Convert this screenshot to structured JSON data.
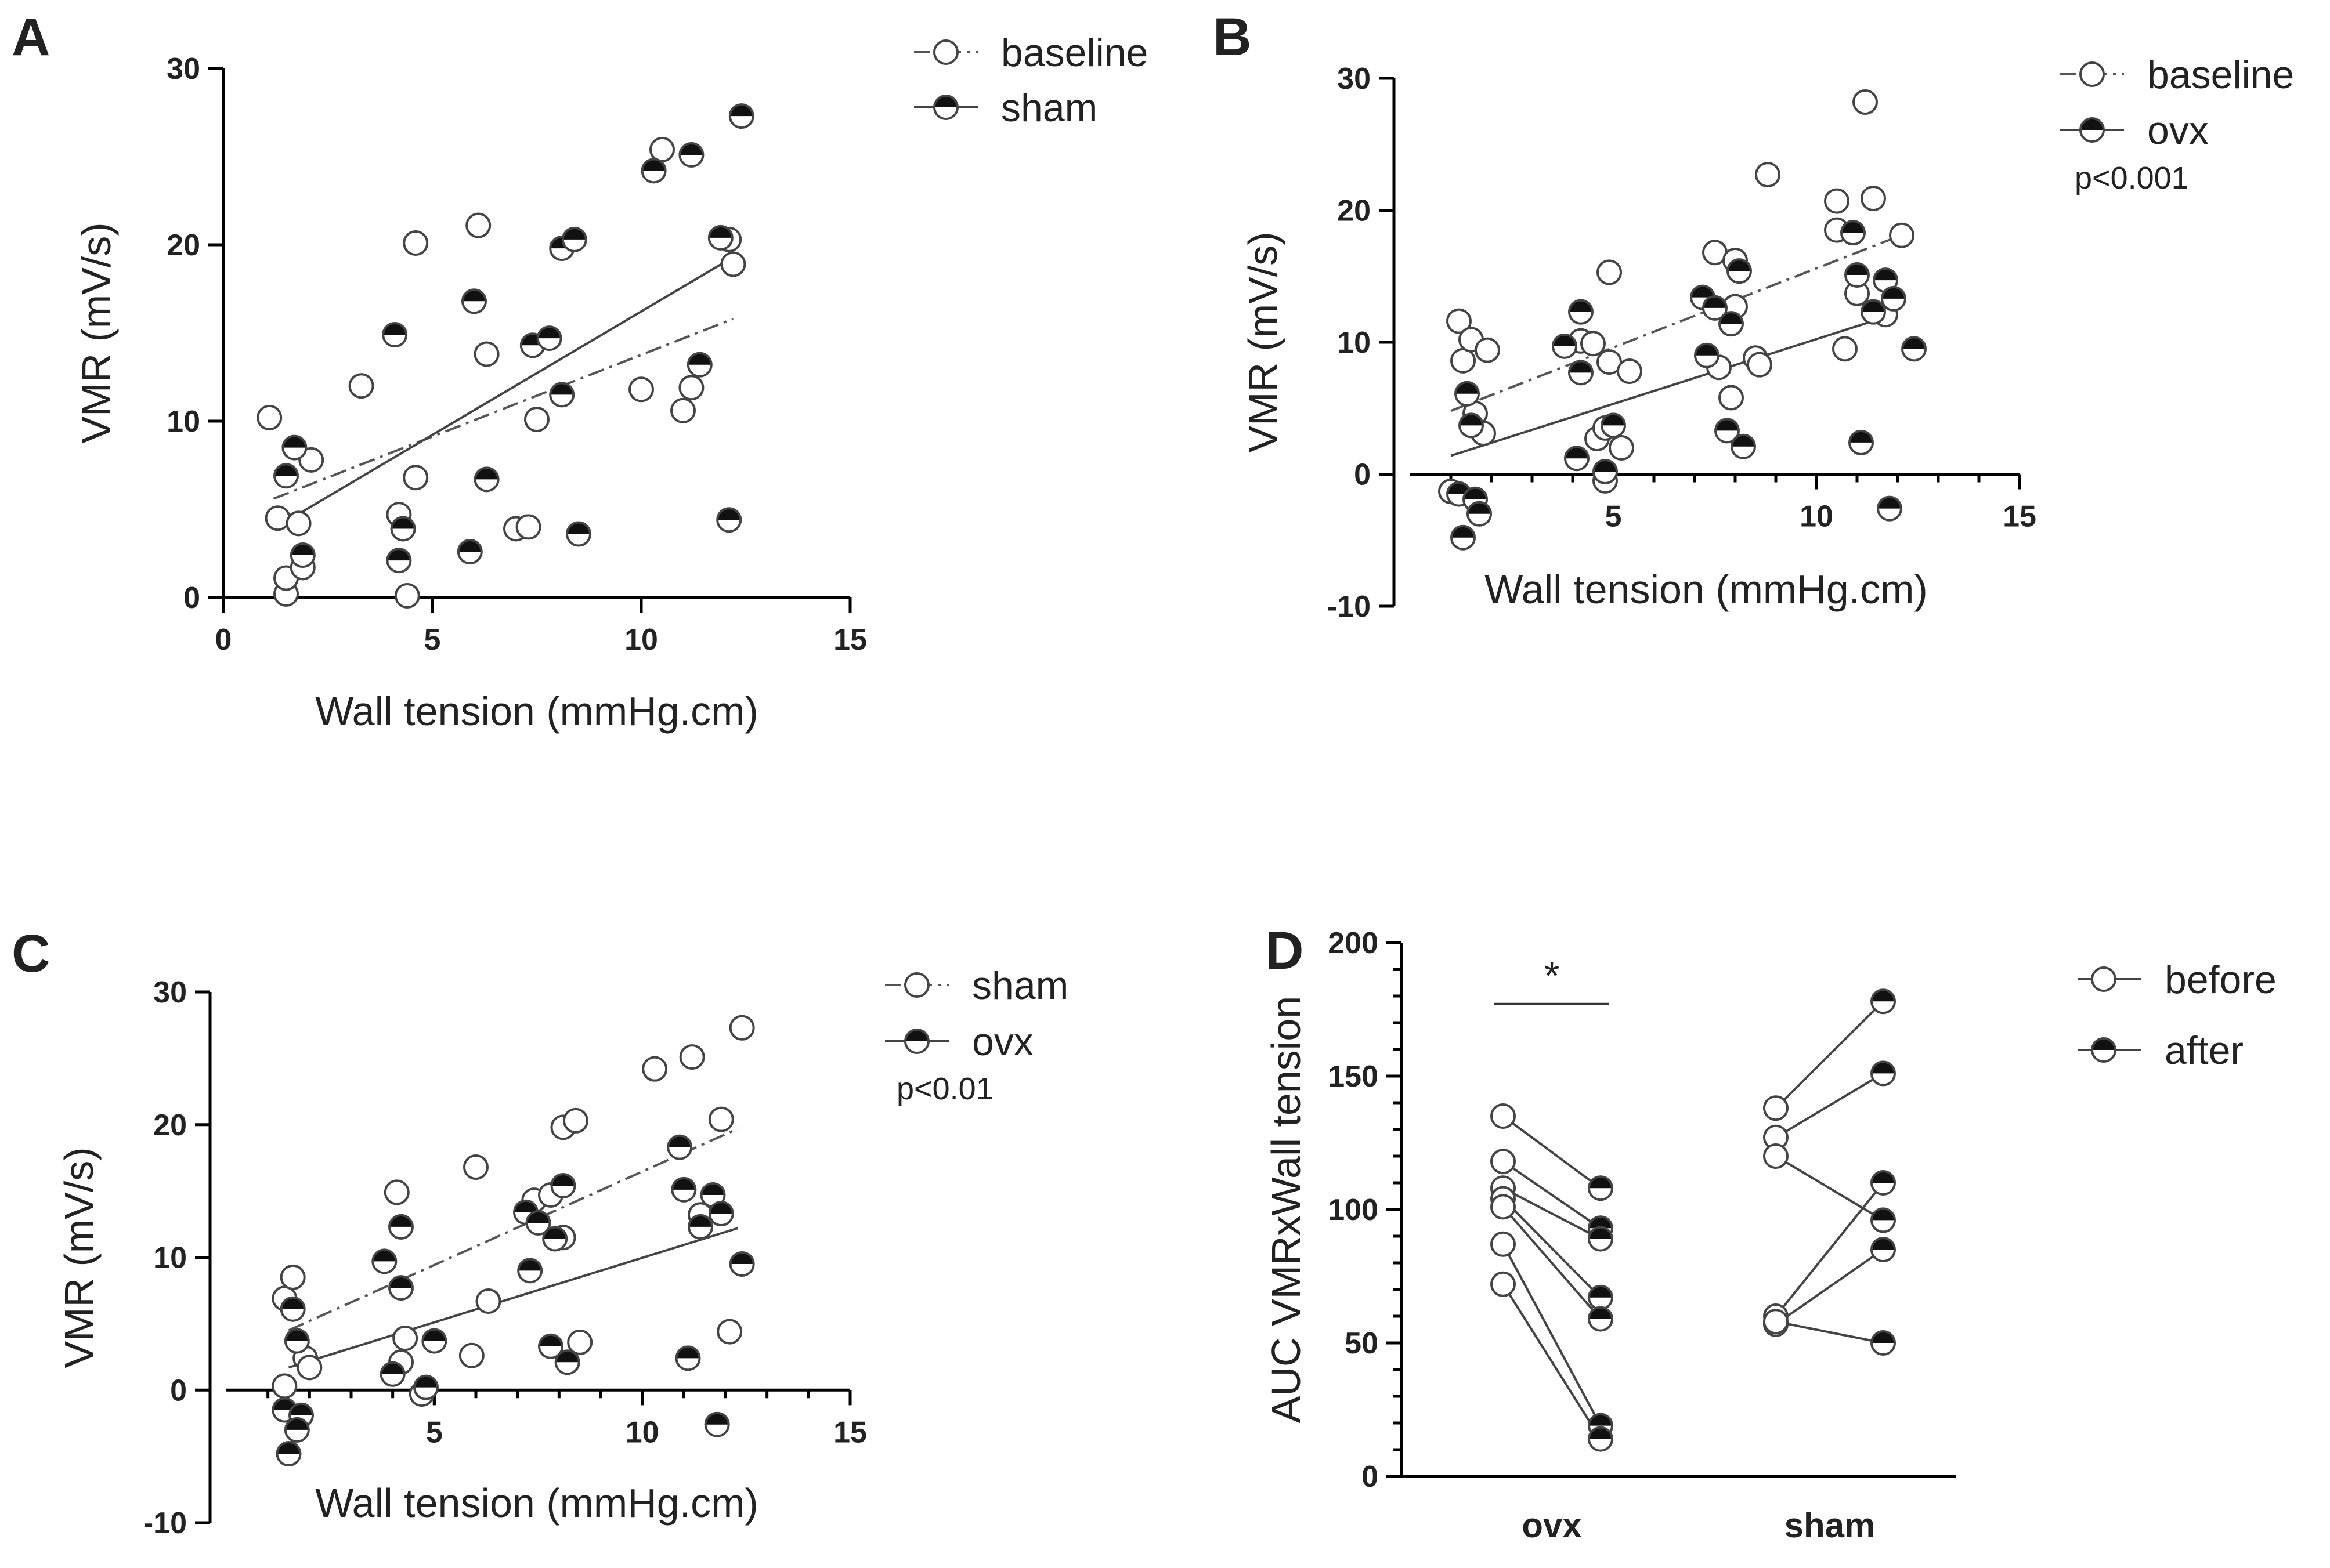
{
  "figure": {
    "panels": [
      {
        "id": "A",
        "letter": "A"
      },
      {
        "id": "B",
        "letter": "B"
      },
      {
        "id": "C",
        "letter": "C"
      },
      {
        "id": "D",
        "letter": "D"
      }
    ]
  },
  "chart_data": [
    {
      "id": "A",
      "type": "scatter",
      "xlabel": "Wall tension (mmHg.cm)",
      "ylabel": "VMR (mV/s)",
      "xlim": [
        0,
        15
      ],
      "ylim": [
        0,
        30
      ],
      "xticks": [
        0,
        5,
        10,
        15
      ],
      "yticks": [
        0,
        10,
        20,
        30
      ],
      "legend_position": "top-right",
      "series": [
        {
          "name": "baseline",
          "marker": "open",
          "fit_line": "dashed",
          "fit": [
            [
              1.2,
              5.6
            ],
            [
              12.2,
              15.8
            ]
          ],
          "points": [
            [
              1.1,
              10.2
            ],
            [
              1.3,
              4.5
            ],
            [
              1.5,
              0.2
            ],
            [
              1.5,
              1.1
            ],
            [
              1.8,
              4.2
            ],
            [
              1.9,
              1.7
            ],
            [
              2.1,
              7.8
            ],
            [
              3.3,
              12.0
            ],
            [
              4.2,
              4.7
            ],
            [
              4.4,
              0.1
            ],
            [
              4.6,
              20.1
            ],
            [
              4.6,
              6.8
            ],
            [
              6.1,
              21.1
            ],
            [
              6.3,
              13.8
            ],
            [
              7.0,
              3.9
            ],
            [
              7.3,
              4.0
            ],
            [
              7.5,
              10.1
            ],
            [
              10.0,
              11.8
            ],
            [
              10.5,
              25.4
            ],
            [
              11.0,
              10.6
            ],
            [
              11.2,
              11.9
            ],
            [
              12.1,
              20.3
            ],
            [
              12.2,
              18.9
            ]
          ]
        },
        {
          "name": "sham",
          "marker": "half",
          "fit_line": "solid",
          "fit": [
            [
              1.7,
              4.6
            ],
            [
              12.2,
              19.3
            ]
          ],
          "points": [
            [
              1.5,
              6.9
            ],
            [
              1.7,
              8.5
            ],
            [
              1.9,
              2.4
            ],
            [
              4.1,
              14.9
            ],
            [
              4.2,
              2.1
            ],
            [
              4.3,
              3.9
            ],
            [
              5.9,
              2.6
            ],
            [
              6.0,
              16.8
            ],
            [
              6.3,
              6.7
            ],
            [
              7.4,
              14.3
            ],
            [
              7.8,
              14.7
            ],
            [
              8.1,
              19.8
            ],
            [
              8.1,
              11.5
            ],
            [
              8.4,
              20.3
            ],
            [
              8.5,
              3.6
            ],
            [
              10.3,
              24.2
            ],
            [
              11.2,
              25.1
            ],
            [
              11.4,
              13.2
            ],
            [
              11.9,
              20.4
            ],
            [
              12.1,
              4.4
            ],
            [
              12.4,
              27.3
            ]
          ]
        }
      ]
    },
    {
      "id": "B",
      "type": "scatter",
      "xlabel": "Wall tension (mmHg.cm)",
      "ylabel": "VMR (mV/s)",
      "xlim": [
        0,
        15
      ],
      "ylim": [
        -10,
        30
      ],
      "xticks": [
        5,
        10,
        15
      ],
      "yticks": [
        -10,
        0,
        10,
        20,
        30
      ],
      "legend_position": "top-right",
      "annotation": "p<0.001",
      "series": [
        {
          "name": "baseline",
          "marker": "open",
          "fit_line": "dashed",
          "fit": [
            [
              1.0,
              4.8
            ],
            [
              12.0,
              18.0
            ]
          ],
          "points": [
            [
              1.0,
              -1.3
            ],
            [
              1.2,
              11.6
            ],
            [
              1.3,
              8.6
            ],
            [
              1.5,
              10.2
            ],
            [
              1.6,
              4.6
            ],
            [
              1.8,
              3.1
            ],
            [
              1.9,
              9.4
            ],
            [
              4.2,
              10.1
            ],
            [
              4.5,
              9.9
            ],
            [
              4.6,
              2.7
            ],
            [
              4.8,
              3.5
            ],
            [
              4.8,
              -0.5
            ],
            [
              4.9,
              8.5
            ],
            [
              4.9,
              15.3
            ],
            [
              5.2,
              2.0
            ],
            [
              5.4,
              7.8
            ],
            [
              7.5,
              16.8
            ],
            [
              7.6,
              8.1
            ],
            [
              7.9,
              5.8
            ],
            [
              8.0,
              16.2
            ],
            [
              8.0,
              12.7
            ],
            [
              8.5,
              8.8
            ],
            [
              8.6,
              8.3
            ],
            [
              8.8,
              22.7
            ],
            [
              10.5,
              20.7
            ],
            [
              10.5,
              18.5
            ],
            [
              10.7,
              9.5
            ],
            [
              11.0,
              13.7
            ],
            [
              11.2,
              28.2
            ],
            [
              11.4,
              20.9
            ],
            [
              11.7,
              12.1
            ],
            [
              12.1,
              18.1
            ]
          ]
        },
        {
          "name": "ovx",
          "marker": "half",
          "fit_line": "solid",
          "fit": [
            [
              1.0,
              1.4
            ],
            [
              12.0,
              12.2
            ]
          ],
          "points": [
            [
              1.2,
              -1.5
            ],
            [
              1.3,
              -4.8
            ],
            [
              1.4,
              6.1
            ],
            [
              1.5,
              3.7
            ],
            [
              1.6,
              -1.9
            ],
            [
              1.7,
              -3.0
            ],
            [
              3.8,
              9.7
            ],
            [
              4.1,
              1.2
            ],
            [
              4.2,
              12.3
            ],
            [
              4.2,
              7.7
            ],
            [
              4.8,
              0.2
            ],
            [
              5.0,
              3.7
            ],
            [
              7.2,
              13.4
            ],
            [
              7.3,
              9.0
            ],
            [
              7.5,
              12.6
            ],
            [
              7.8,
              3.3
            ],
            [
              7.9,
              11.4
            ],
            [
              8.1,
              15.4
            ],
            [
              8.2,
              2.1
            ],
            [
              10.9,
              18.3
            ],
            [
              11.0,
              15.1
            ],
            [
              11.1,
              2.4
            ],
            [
              11.4,
              12.3
            ],
            [
              11.7,
              14.7
            ],
            [
              11.8,
              -2.6
            ],
            [
              11.9,
              13.3
            ],
            [
              12.4,
              9.5
            ]
          ]
        }
      ]
    },
    {
      "id": "C",
      "type": "scatter",
      "xlabel": "Wall tension (mmHg.cm)",
      "ylabel": "VMR (mV/s)",
      "xlim": [
        0,
        15
      ],
      "ylim": [
        -10,
        30
      ],
      "xticks": [
        5,
        10,
        15
      ],
      "yticks": [
        -10,
        0,
        10,
        20,
        30
      ],
      "legend_position": "top-right",
      "annotation": "p<0.01",
      "series": [
        {
          "name": "sham",
          "marker": "open",
          "fit_line": "dashed",
          "fit": [
            [
              1.5,
              4.5
            ],
            [
              12.3,
              19.7
            ]
          ],
          "points": [
            [
              1.4,
              6.9
            ],
            [
              1.4,
              0.3
            ],
            [
              1.6,
              8.5
            ],
            [
              1.9,
              2.4
            ],
            [
              2.0,
              1.7
            ],
            [
              4.1,
              14.9
            ],
            [
              4.2,
              2.1
            ],
            [
              4.3,
              3.9
            ],
            [
              4.7,
              -0.3
            ],
            [
              5.9,
              2.6
            ],
            [
              6.0,
              16.8
            ],
            [
              6.3,
              6.7
            ],
            [
              7.4,
              14.3
            ],
            [
              7.8,
              14.7
            ],
            [
              8.1,
              19.8
            ],
            [
              8.1,
              11.5
            ],
            [
              8.4,
              20.3
            ],
            [
              8.5,
              3.6
            ],
            [
              10.3,
              24.2
            ],
            [
              11.2,
              25.1
            ],
            [
              11.4,
              13.2
            ],
            [
              11.9,
              20.4
            ],
            [
              12.1,
              4.4
            ],
            [
              12.4,
              27.3
            ]
          ]
        },
        {
          "name": "ovx",
          "marker": "half",
          "fit_line": "solid",
          "fit": [
            [
              1.5,
              1.7
            ],
            [
              12.3,
              12.2
            ]
          ],
          "points": [
            [
              1.4,
              -1.5
            ],
            [
              1.5,
              -4.8
            ],
            [
              1.6,
              6.1
            ],
            [
              1.7,
              3.7
            ],
            [
              1.8,
              -1.9
            ],
            [
              1.7,
              -3.0
            ],
            [
              3.8,
              9.7
            ],
            [
              4.0,
              1.2
            ],
            [
              4.2,
              12.3
            ],
            [
              4.2,
              7.7
            ],
            [
              4.8,
              0.2
            ],
            [
              5.0,
              3.7
            ],
            [
              7.2,
              13.4
            ],
            [
              7.3,
              9.0
            ],
            [
              7.5,
              12.6
            ],
            [
              7.8,
              3.3
            ],
            [
              7.9,
              11.4
            ],
            [
              8.1,
              15.4
            ],
            [
              8.2,
              2.1
            ],
            [
              10.9,
              18.3
            ],
            [
              11.0,
              15.1
            ],
            [
              11.1,
              2.4
            ],
            [
              11.4,
              12.3
            ],
            [
              11.7,
              14.7
            ],
            [
              11.8,
              -2.6
            ],
            [
              11.9,
              13.3
            ],
            [
              12.4,
              9.5
            ]
          ]
        }
      ]
    },
    {
      "id": "D",
      "type": "scatter",
      "chart_kind": "before-after paired dot plot",
      "ylabel": "AUC VMRxWall tension",
      "categories": [
        "ovx",
        "sham"
      ],
      "ylim": [
        0,
        200
      ],
      "yticks": [
        0,
        50,
        100,
        150,
        200
      ],
      "legend_position": "top-right",
      "significance": {
        "label": "*",
        "between": [
          "before",
          "after"
        ],
        "category": "ovx"
      },
      "series": [
        {
          "name": "before",
          "marker": "open"
        },
        {
          "name": "after",
          "marker": "half"
        }
      ],
      "pairs": {
        "ovx": [
          [
            135,
            108
          ],
          [
            118,
            93
          ],
          [
            108,
            89
          ],
          [
            104,
            67
          ],
          [
            101,
            59
          ],
          [
            87,
            19
          ],
          [
            72,
            14
          ]
        ],
        "sham": [
          [
            138,
            178
          ],
          [
            127,
            151
          ],
          [
            120,
            96
          ],
          [
            60,
            110
          ],
          [
            57,
            85
          ],
          [
            58,
            50
          ]
        ]
      }
    }
  ]
}
